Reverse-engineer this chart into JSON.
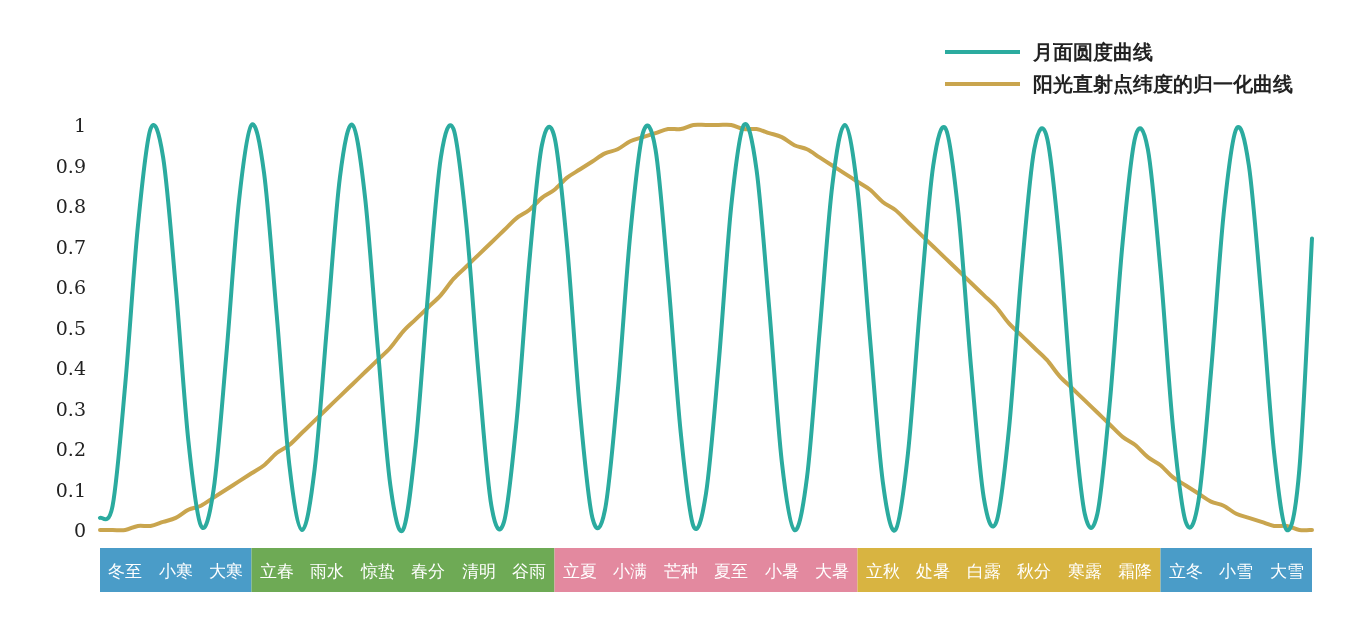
{
  "chart_data": {
    "type": "line",
    "categories": [
      null,
      null,
      "冬至",
      null,
      null,
      null,
      "小寒",
      null,
      null,
      null,
      "大寒",
      null,
      null,
      null,
      "立春",
      null,
      null,
      null,
      "雨水",
      null,
      null,
      null,
      "惊蛰",
      null,
      null,
      null,
      "春分",
      null,
      null,
      null,
      "清明",
      null,
      null,
      null,
      "谷雨",
      null,
      null,
      null,
      "立夏",
      null,
      null,
      null,
      "小满",
      null,
      null,
      null,
      "芒种",
      null,
      null,
      null,
      "夏至",
      null,
      null,
      null,
      "小暑",
      null,
      null,
      null,
      "大暑",
      null,
      null,
      null,
      "立秋",
      null,
      null,
      null,
      "处暑",
      null,
      null,
      null,
      "白露",
      null,
      null,
      null,
      "秋分",
      null,
      null,
      null,
      "寒露",
      null,
      null,
      null,
      "霜降",
      null,
      null,
      null,
      "立冬",
      null,
      null,
      null,
      "小雪",
      null,
      null,
      null,
      "大雪",
      null,
      null
    ],
    "ylim": [
      0,
      1
    ],
    "yticks": [
      0,
      0.1,
      0.2,
      0.3,
      0.4,
      0.5,
      0.6,
      0.7,
      0.8,
      0.9,
      1
    ],
    "legend": "top right",
    "series": [
      {
        "name": "月面圆度曲线",
        "color": "#2bab9f",
        "values": [
          0.03,
          0.06,
          0.36,
          0.75,
          0.99,
          0.92,
          0.6,
          0.22,
          0.01,
          0.1,
          0.43,
          0.81,
          1.0,
          0.88,
          0.53,
          0.16,
          0.0,
          0.15,
          0.51,
          0.87,
          1.0,
          0.82,
          0.45,
          0.11,
          0.0,
          0.21,
          0.59,
          0.92,
          0.99,
          0.76,
          0.38,
          0.06,
          0.02,
          0.27,
          0.66,
          0.95,
          0.97,
          0.7,
          0.3,
          0.03,
          0.05,
          0.34,
          0.73,
          0.98,
          0.94,
          0.62,
          0.24,
          0.01,
          0.09,
          0.41,
          0.8,
          1.0,
          0.89,
          0.55,
          0.17,
          0.0,
          0.13,
          0.49,
          0.85,
          1.0,
          0.84,
          0.47,
          0.12,
          0.0,
          0.19,
          0.57,
          0.9,
          0.99,
          0.78,
          0.4,
          0.08,
          0.02,
          0.25,
          0.64,
          0.94,
          0.97,
          0.71,
          0.32,
          0.04,
          0.04,
          0.32,
          0.71,
          0.97,
          0.94,
          0.64,
          0.25,
          0.02,
          0.07,
          0.39,
          0.78,
          0.99,
          0.9,
          0.57,
          0.19,
          0.0,
          0.15,
          0.72
        ]
      },
      {
        "name": "阳光直射点纬度的归一化曲线",
        "color": "#c9a54e",
        "values": [
          0.0,
          0.0,
          0.0,
          0.01,
          0.01,
          0.02,
          0.03,
          0.05,
          0.06,
          0.08,
          0.1,
          0.12,
          0.14,
          0.16,
          0.19,
          0.21,
          0.24,
          0.27,
          0.3,
          0.33,
          0.36,
          0.39,
          0.42,
          0.45,
          0.49,
          0.52,
          0.55,
          0.58,
          0.62,
          0.65,
          0.68,
          0.71,
          0.74,
          0.77,
          0.79,
          0.82,
          0.84,
          0.87,
          0.89,
          0.91,
          0.93,
          0.94,
          0.96,
          0.97,
          0.98,
          0.99,
          0.99,
          1.0,
          1.0,
          1.0,
          1.0,
          0.99,
          0.99,
          0.98,
          0.97,
          0.95,
          0.94,
          0.92,
          0.9,
          0.88,
          0.86,
          0.84,
          0.81,
          0.79,
          0.76,
          0.73,
          0.7,
          0.67,
          0.64,
          0.61,
          0.58,
          0.55,
          0.51,
          0.48,
          0.45,
          0.42,
          0.38,
          0.35,
          0.32,
          0.29,
          0.26,
          0.23,
          0.21,
          0.18,
          0.16,
          0.13,
          0.11,
          0.09,
          0.07,
          0.06,
          0.04,
          0.03,
          0.02,
          0.01,
          0.01,
          0.0,
          0.0
        ]
      }
    ]
  }
}
